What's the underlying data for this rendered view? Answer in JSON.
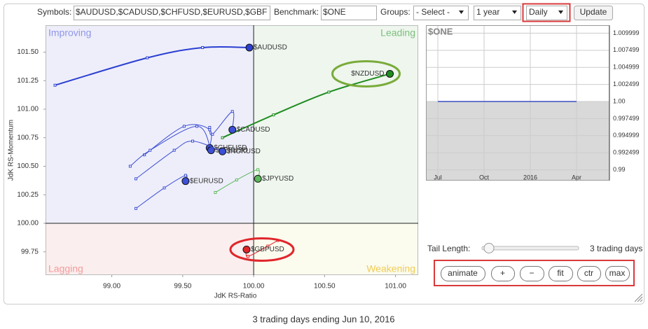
{
  "toolbar": {
    "symbols_label": "Symbols:",
    "symbols_value": "$AUDUSD,$CADUSD,$CHFUSD,$EURUSD,$GBF",
    "benchmark_label": "Benchmark:",
    "benchmark_value": "$ONE",
    "groups_label": "Groups:",
    "groups_value": "- Select -",
    "period_value": "1 year",
    "frequency_value": "Daily",
    "update_button": "Update"
  },
  "chart_data": [
    {
      "type": "scatter",
      "x_label": "JdK RS-Ratio",
      "y_label": "JdK RS-Momentum",
      "quadrants": [
        {
          "name": "Improving",
          "color": "#8f96e8",
          "fill": "#eeeefa"
        },
        {
          "name": "Leading",
          "color": "#7dbf7d",
          "fill": "#eef6ee"
        },
        {
          "name": "Lagging",
          "color": "#f29c9c",
          "fill": "#fbeeee"
        },
        {
          "name": "Weakening",
          "color": "#f0cc55",
          "fill": "#fbfbee"
        }
      ],
      "center": {
        "x": 100,
        "y": 100
      },
      "xlim": [
        98.533,
        101.16
      ],
      "ylim": [
        99.546,
        101.736
      ],
      "xticks": [
        {
          "value": 99,
          "label": "99.00"
        },
        {
          "value": 99.5,
          "label": "99.50"
        },
        {
          "value": 100,
          "label": "100.00"
        },
        {
          "value": 100.5,
          "label": "100.50"
        },
        {
          "value": 101,
          "label": "101.00"
        }
      ],
      "yticks": [
        {
          "value": 99.75,
          "label": "99.75"
        },
        {
          "value": 100,
          "label": "100.00"
        },
        {
          "value": 100.25,
          "label": "100.25"
        },
        {
          "value": 100.5,
          "label": "100.50"
        },
        {
          "value": 100.75,
          "label": "100.75"
        },
        {
          "value": 101,
          "label": "101.00"
        },
        {
          "value": 101.25,
          "label": "101.25"
        },
        {
          "value": 101.5,
          "label": "101.50"
        }
      ],
      "series": [
        {
          "name": "$AUDUSD",
          "color": "#2b3fd1",
          "x": [
            98.6,
            99.25,
            99.64,
            99.97
          ],
          "values": [
            101.21,
            101.45,
            101.54,
            101.54
          ]
        },
        {
          "name": "$NZDUSD",
          "color": "#1f8c1f",
          "x": [
            99.78,
            100.14,
            100.53,
            100.96
          ],
          "values": [
            100.75,
            100.95,
            101.15,
            101.31
          ],
          "label_side": "left",
          "highlight": "#7aab3a"
        },
        {
          "name": "$CADUSD",
          "color": "#3d4fd6",
          "x": [
            99.69,
            99.71,
            99.85,
            99.85
          ],
          "values": [
            100.84,
            100.78,
            100.98,
            100.82
          ]
        },
        {
          "name": "$CHFUSD",
          "color": "#3d4fd6",
          "x": [
            99.23,
            99.51,
            99.69,
            99.69
          ],
          "values": [
            100.6,
            100.85,
            100.82,
            100.66
          ]
        },
        {
          "name": "$SEKUSD",
          "color": "#3d4fd6",
          "x": [
            99.13,
            99.27,
            99.6,
            99.7
          ],
          "values": [
            100.5,
            100.64,
            100.85,
            100.64
          ]
        },
        {
          "name": "$NOKUSD",
          "color": "#3d4fd6",
          "x": [
            99.17,
            99.44,
            99.57,
            99.78
          ],
          "values": [
            100.39,
            100.64,
            100.72,
            100.63
          ]
        },
        {
          "name": "$EURUSD",
          "color": "#3d4fd6",
          "x": [
            99.17,
            99.37,
            99.52,
            99.52
          ],
          "values": [
            100.13,
            100.31,
            100.42,
            100.37
          ]
        },
        {
          "name": "$JPYUSD",
          "color": "#5cb85c",
          "x": [
            99.73,
            99.88,
            100.03,
            100.03
          ],
          "values": [
            100.27,
            100.38,
            100.47,
            100.39
          ]
        },
        {
          "name": "$GBPUSD",
          "color": "#e0262b",
          "x": [
            100.17,
            100.1,
            99.96,
            99.95
          ],
          "values": [
            99.85,
            99.8,
            99.71,
            99.77
          ],
          "highlight": "#e0262b"
        }
      ]
    },
    {
      "type": "line",
      "title": "$ONE",
      "categories": [
        "Jul",
        "Oct",
        "2016",
        "Apr"
      ],
      "values": [
        1,
        1,
        1,
        1
      ],
      "color": "#3b4fc4",
      "fill": "#d9d9d9",
      "grid": true,
      "ylim": [
        0.98842,
        1.01117
      ],
      "yticks": [
        1.009999,
        1.007499,
        1.004999,
        1.002499,
        {
          "value": 1,
          "label": "1.00"
        },
        0.997499,
        0.994999,
        0.992499,
        0.99
      ]
    }
  ],
  "controls": {
    "tail_length_label": "Tail Length:",
    "tail_length_value": "3 trading days",
    "buttons": [
      "animate",
      "+",
      "−",
      "fit",
      "ctr",
      "max"
    ]
  },
  "caption": "3 trading days ending Jun 10, 2016"
}
